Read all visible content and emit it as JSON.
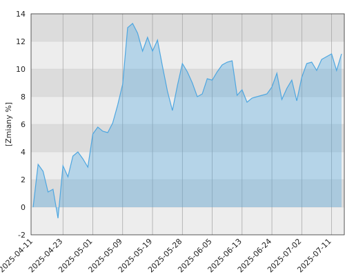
{
  "chart_data": {
    "type": "area",
    "y_label": "[Zmiany %]",
    "categories": [
      "2025-04-11",
      null,
      null,
      null,
      null,
      null,
      "2025-04-23",
      null,
      null,
      null,
      null,
      null,
      "2025-05-01",
      null,
      null,
      null,
      null,
      null,
      "2025-05-09",
      null,
      null,
      null,
      null,
      null,
      "2025-05-19",
      null,
      null,
      null,
      null,
      null,
      "2025-05-28",
      null,
      null,
      null,
      null,
      null,
      "2025-06-05",
      null,
      null,
      null,
      null,
      null,
      "2025-06-13",
      null,
      null,
      null,
      null,
      null,
      "2025-06-24",
      null,
      null,
      null,
      null,
      null,
      "2025-07-02",
      null,
      null,
      null,
      null,
      null,
      "2025-07-11",
      null,
      null
    ],
    "values": [
      0,
      3.1,
      2.6,
      1.1,
      1.3,
      -0.8,
      3.0,
      2.2,
      3.7,
      4.0,
      3.5,
      2.9,
      5.3,
      5.8,
      5.5,
      5.4,
      6.1,
      7.4,
      8.9,
      13.0,
      13.3,
      12.6,
      11.3,
      12.3,
      11.3,
      12.1,
      10.2,
      8.4,
      7.0,
      8.8,
      10.4,
      9.8,
      9.0,
      8.0,
      8.2,
      9.3,
      9.2,
      9.8,
      10.3,
      10.5,
      10.6,
      8.1,
      8.5,
      7.6,
      7.9,
      8.0,
      8.1,
      8.2,
      8.7,
      9.7,
      7.8,
      8.6,
      9.2,
      7.7,
      9.4,
      10.4,
      10.5,
      9.9,
      10.7,
      10.9,
      11.1,
      9.9,
      11.1
    ],
    "color": "#4da6e0",
    "ylim": [
      -2,
      14
    ],
    "yticks": [
      -2,
      0,
      2,
      4,
      6,
      8,
      10,
      12,
      14
    ],
    "grid": true
  }
}
